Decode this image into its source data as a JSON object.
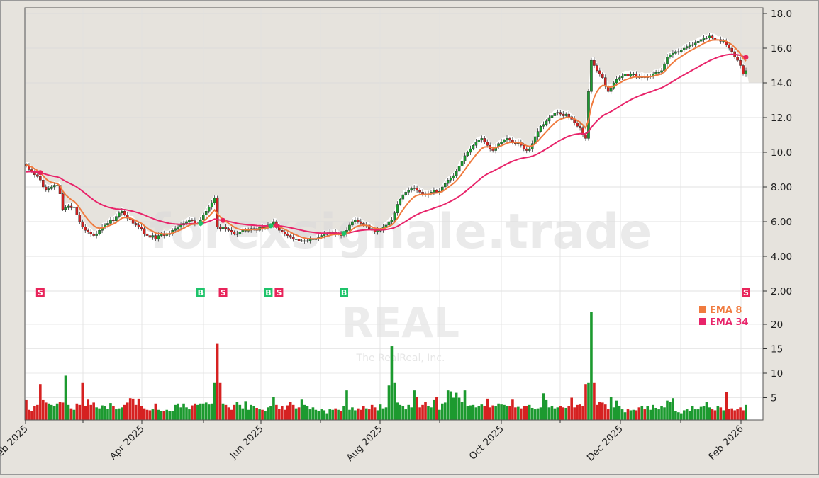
{
  "chart_data": {
    "type": "candlestick",
    "watermark": "forexsignale.trade",
    "symbol": "REAL",
    "company": "The RealReal, Inc.",
    "x_tick_labels": [
      "Feb 2025",
      "Apr 2025",
      "Jun 2025",
      "Aug 2025",
      "Oct 2025",
      "Dec 2025",
      "Feb 2026"
    ],
    "price_axis": {
      "ticks": [
        "2.00",
        "4.00",
        "6.00",
        "8.00",
        "10.0",
        "12.0",
        "14.0",
        "16.0",
        "18.0"
      ],
      "ylim": [
        2,
        18
      ]
    },
    "volume_axis": {
      "ticks": [
        "5",
        "10",
        "15",
        "20"
      ],
      "ylim": [
        0,
        20
      ]
    },
    "grid": true,
    "legend": {
      "placement": "right",
      "entries": [
        {
          "label": "EMA 8",
          "color": "#f07b3f"
        },
        {
          "label": "EMA 34",
          "color": "#e8246a"
        }
      ]
    },
    "colors": {
      "up": "#1c9a2f",
      "down": "#d62121",
      "buy": "#1ec36a",
      "sell": "#e8245a",
      "background_fill": "#e6e3dd"
    },
    "first_open": 9.3,
    "close": [
      9.2,
      9.0,
      8.9,
      8.7,
      8.6,
      8.4,
      8.0,
      7.85,
      7.9,
      8.0,
      8.1,
      8.1,
      7.6,
      6.7,
      6.8,
      6.9,
      6.8,
      6.85,
      6.4,
      6.0,
      5.7,
      5.5,
      5.4,
      5.3,
      5.2,
      5.3,
      5.5,
      5.7,
      5.8,
      5.9,
      6.1,
      6.05,
      6.3,
      6.5,
      6.6,
      6.4,
      6.2,
      6.1,
      5.9,
      5.8,
      5.7,
      5.6,
      5.3,
      5.2,
      5.1,
      5.2,
      5.0,
      5.2,
      5.3,
      5.2,
      5.3,
      5.3,
      5.5,
      5.6,
      5.7,
      5.8,
      5.9,
      6.0,
      6.1,
      6.05,
      5.9,
      5.9,
      6.1,
      6.4,
      6.6,
      6.85,
      7.1,
      7.35,
      5.7,
      5.6,
      5.7,
      5.6,
      5.5,
      5.4,
      5.3,
      5.3,
      5.4,
      5.5,
      5.5,
      5.5,
      5.6,
      5.6,
      5.5,
      5.7,
      5.6,
      5.7,
      5.8,
      5.8,
      6.0,
      5.7,
      5.5,
      5.4,
      5.3,
      5.2,
      5.1,
      5.0,
      5.0,
      4.9,
      4.9,
      4.9,
      4.9,
      5.0,
      5.0,
      5.0,
      5.1,
      5.2,
      5.3,
      5.3,
      5.4,
      5.4,
      5.3,
      5.3,
      5.2,
      5.3,
      5.5,
      5.8,
      6.0,
      6.1,
      6.0,
      5.9,
      5.8,
      5.8,
      5.6,
      5.5,
      5.4,
      5.5,
      5.5,
      5.7,
      5.8,
      6.0,
      6.1,
      6.5,
      7.0,
      7.3,
      7.55,
      7.7,
      7.8,
      7.9,
      7.95,
      7.8,
      7.7,
      7.6,
      7.55,
      7.6,
      7.7,
      7.8,
      7.7,
      7.75,
      8.0,
      8.2,
      8.4,
      8.5,
      8.65,
      8.9,
      9.2,
      9.5,
      9.8,
      10.0,
      10.2,
      10.4,
      10.6,
      10.7,
      10.8,
      10.6,
      10.4,
      10.2,
      10.1,
      10.3,
      10.5,
      10.6,
      10.7,
      10.8,
      10.7,
      10.6,
      10.5,
      10.6,
      10.4,
      10.2,
      10.1,
      10.2,
      10.5,
      10.9,
      11.2,
      11.5,
      11.6,
      11.8,
      12.0,
      12.1,
      12.25,
      12.3,
      12.2,
      12.1,
      12.2,
      12.05,
      11.9,
      11.7,
      11.5,
      11.4,
      11.0,
      10.8,
      13.5,
      15.3,
      15.0,
      14.7,
      14.5,
      14.3,
      13.8,
      13.5,
      13.7,
      14.0,
      14.2,
      14.3,
      14.4,
      14.5,
      14.4,
      14.5,
      14.5,
      14.4,
      14.3,
      14.4,
      14.3,
      14.35,
      14.4,
      14.5,
      14.6,
      14.6,
      14.7,
      15.1,
      15.5,
      15.6,
      15.7,
      15.8,
      15.8,
      15.9,
      16.0,
      16.1,
      16.2,
      16.2,
      16.3,
      16.4,
      16.5,
      16.6,
      16.6,
      16.7,
      16.6,
      16.5,
      16.5,
      16.4,
      16.4,
      16.2,
      16.0,
      15.8,
      15.5,
      15.3,
      15.0,
      14.5,
      14.7
    ],
    "volume": [
      4.5,
      2.5,
      2.3,
      3.2,
      3.5,
      7.8,
      4.5,
      4.0,
      3.8,
      3.5,
      3.3,
      3.8,
      4.2,
      4.0,
      9.5,
      3.5,
      2.8,
      2.5,
      3.8,
      3.5,
      8.0,
      3.2,
      4.6,
      3.5,
      4.0,
      3.0,
      2.8,
      3.4,
      3.2,
      2.7,
      3.9,
      3.2,
      2.6,
      2.8,
      3.0,
      3.5,
      4.0,
      4.9,
      4.8,
      3.5,
      4.8,
      3.2,
      2.8,
      2.5,
      2.4,
      2.6,
      3.8,
      2.5,
      2.3,
      2.2,
      2.5,
      2.3,
      2.2,
      3.5,
      3.8,
      3.0,
      3.8,
      3.0,
      2.6,
      3.4,
      3.8,
      3.5,
      3.8,
      3.8,
      4.0,
      3.6,
      3.8,
      8.0,
      16.0,
      8.0,
      3.8,
      3.5,
      3.0,
      2.5,
      3.5,
      4.2,
      3.5,
      2.8,
      4.3,
      2.5,
      3.5,
      3.3,
      2.9,
      2.6,
      2.5,
      2.3,
      3.0,
      3.2,
      5.2,
      3.5,
      2.7,
      3.2,
      2.5,
      3.4,
      4.2,
      3.5,
      2.8,
      3.0,
      4.6,
      3.5,
      3.2,
      2.6,
      3.0,
      2.5,
      2.2,
      2.6,
      2.4,
      1.8,
      2.6,
      2.5,
      2.8,
      2.5,
      2.3,
      3.2,
      6.5,
      2.5,
      3.0,
      2.4,
      2.8,
      2.5,
      3.2,
      2.8,
      2.6,
      3.5,
      3.0,
      2.4,
      3.6,
      2.8,
      3.0,
      7.5,
      15.5,
      8.0,
      4.0,
      3.5,
      3.2,
      2.6,
      3.5,
      3.0,
      6.5,
      5.2,
      3.0,
      3.5,
      4.2,
      3.2,
      3.0,
      4.5,
      5.2,
      2.5,
      3.8,
      4.0,
      6.5,
      6.3,
      5.0,
      6.0,
      5.0,
      4.2,
      6.5,
      3.2,
      3.4,
      3.5,
      3.0,
      3.3,
      3.6,
      3.2,
      4.8,
      3.0,
      3.4,
      3.2,
      3.8,
      3.6,
      3.5,
      3.2,
      3.3,
      4.6,
      3.0,
      3.1,
      2.8,
      3.2,
      3.2,
      3.5,
      2.9,
      2.6,
      2.8,
      3.0,
      5.9,
      4.5,
      3.0,
      3.2,
      2.8,
      3.0,
      3.2,
      3.0,
      2.9,
      3.3,
      5.0,
      3.0,
      3.5,
      3.6,
      3.3,
      7.8,
      8.0,
      22.5,
      8.0,
      3.5,
      4.2,
      4.0,
      3.6,
      2.6,
      5.2,
      3.0,
      4.4,
      3.3,
      2.6,
      2.0,
      2.6,
      2.4,
      2.5,
      2.4,
      3.0,
      3.3,
      2.6,
      3.2,
      2.5,
      3.5,
      2.9,
      2.6,
      3.3,
      3.0,
      4.4,
      4.2,
      4.9,
      2.3,
      2.0,
      1.8,
      2.4,
      2.6,
      2.2,
      3.2,
      2.6,
      2.6,
      3.1,
      3.3,
      4.2,
      3.0,
      2.6,
      2.4,
      3.2,
      3.0,
      2.4,
      6.2,
      2.7,
      2.8,
      2.4,
      2.6,
      3.0,
      2.4,
      3.5
    ],
    "ema_seed": {
      "ema8": 9.3,
      "ema34": 8.85
    },
    "signals": [
      {
        "index": 5,
        "type": "S"
      },
      {
        "index": 62,
        "type": "B"
      },
      {
        "index": 70,
        "type": "S"
      },
      {
        "index": 87,
        "type": "B"
      },
      {
        "index": 89,
        "type": "S"
      },
      {
        "index": 113,
        "type": "B"
      },
      {
        "index": 256,
        "type": "S"
      }
    ]
  }
}
